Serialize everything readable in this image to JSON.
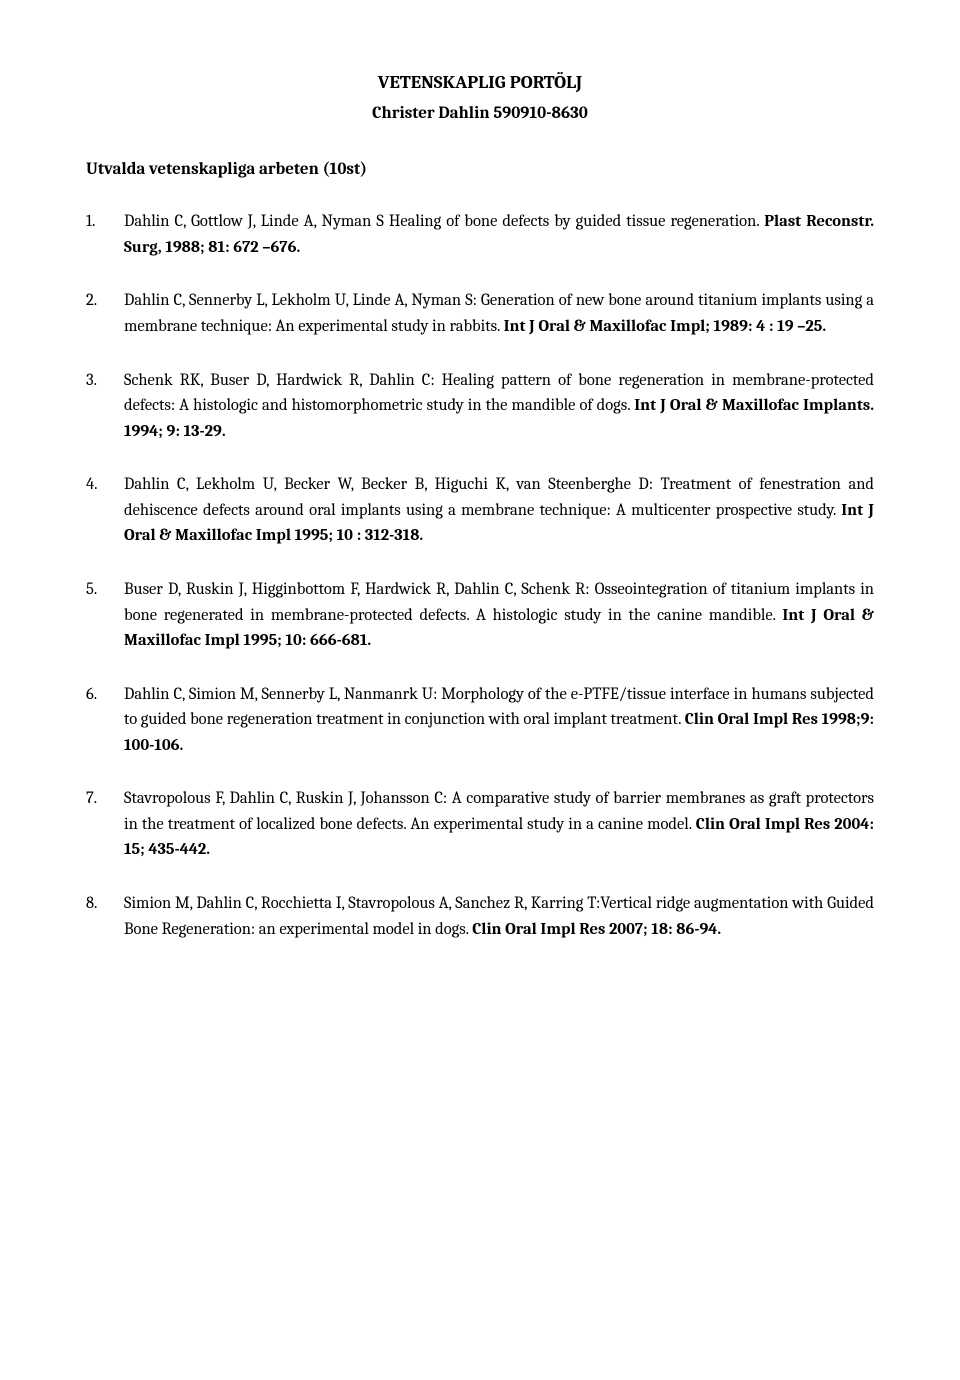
{
  "header": {
    "line1": "VETENSKAPLIG PORTÖLJ",
    "line2": "Christer Dahlin 590910-8630"
  },
  "section_heading": "Utvalda vetenskapliga arbeten (10st)",
  "entries": [
    {
      "num": "1.",
      "text": "Dahlin C, Gottlow J, Linde A, Nyman S Healing of bone defects by guided tissue regeneration. ",
      "bold": "Plast Reconstr. Surg, 1988; 81: 672 –676."
    },
    {
      "num": "2.",
      "text": "Dahlin C, Sennerby L, Lekholm U, Linde A, Nyman S: Generation of new bone around titanium implants using a membrane technique: An experimental study in rabbits. ",
      "bold": "Int J Oral & Maxillofac Impl; 1989: 4 : 19 –25."
    },
    {
      "num": "3.",
      "text": "Schenk RK, Buser D, Hardwick R, Dahlin C: Healing pattern of bone regeneration in membrane-protected defects: A histologic and histomorphometric study in the mandible of dogs. ",
      "bold": "Int J Oral & Maxillofac Implants. 1994; 9: 13-29."
    },
    {
      "num": "4.",
      "text": "Dahlin C, Lekholm U, Becker W, Becker B, Higuchi K, van Steenberghe D: Treatment of fenestration and dehiscence defects around oral implants using a membrane technique: A multicenter prospective study. ",
      "bold": "Int J Oral & Maxillofac Impl 1995; 10 : 312-318."
    },
    {
      "num": "5.",
      "text": "Buser D, Ruskin J, Higginbottom F, Hardwick R, Dahlin C, Schenk R: Osseointegration of titanium implants in bone regenerated in membrane-protected defects. A histologic study in the canine mandible. ",
      "bold": "Int J Oral & Maxillofac Impl 1995; 10: 666-681."
    },
    {
      "num": "6.",
      "text": "Dahlin C, Simion M, Sennerby L, Nanmanrk U: Morphology of the e-PTFE/tissue interface in humans subjected to guided bone regeneration treatment in conjunction with oral implant treatment. ",
      "bold": "Clin Oral Impl Res 1998;9: 100-106."
    },
    {
      "num": "7.",
      "text": "Stavropolous F, Dahlin C, Ruskin J, Johansson C: A comparative study of barrier membranes as graft protectors in the treatment of localized bone defects. An experimental study in a canine model. ",
      "bold": "Clin Oral Impl Res 2004: 15; 435-442."
    },
    {
      "num": "8.",
      "text": "Simion M, Dahlin C, Rocchietta I, Stavropolous A, Sanchez R, Karring   T:Vertical ridge augmentation with Guided Bone Regeneration: an experimental model in dogs. ",
      "bold": "Clin Oral Impl Res 2007; 18: 86-94."
    }
  ]
}
